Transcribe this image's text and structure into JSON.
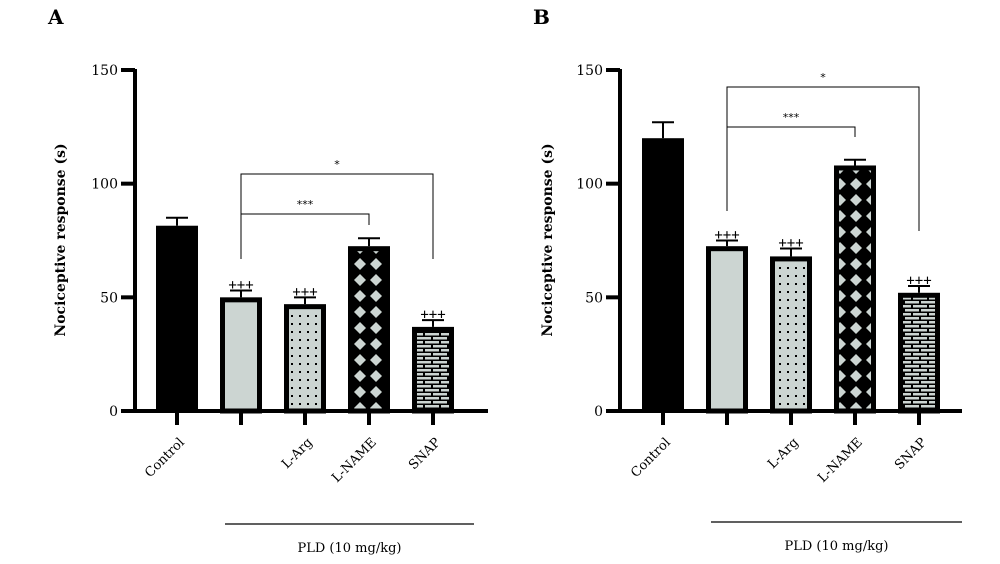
{
  "chart_data": [
    {
      "panel": "A",
      "type": "bar",
      "title": "",
      "ylabel": "Nociceptive response (s)",
      "xlabel": "",
      "ylim": [
        0,
        150
      ],
      "yticks": [
        0,
        50,
        100,
        150
      ],
      "categories": [
        "Control",
        "",
        "L-Arg",
        "L-NAME",
        "SNAP"
      ],
      "values": [
        81.5,
        50,
        47,
        72.5,
        37
      ],
      "errors": [
        3.5,
        3,
        3,
        3.5,
        3
      ],
      "patterns": [
        "solid",
        "plain",
        "dots",
        "diamond",
        "brick"
      ],
      "markers": [
        "",
        "+++",
        "+++",
        "",
        "+++"
      ],
      "group_label": "PLD (10 mg/kg)",
      "group_span": [
        1,
        4
      ],
      "brackets": [
        {
          "from": 1,
          "to": 3,
          "label": "***"
        },
        {
          "from": 1,
          "to": 4,
          "label": "*"
        }
      ]
    },
    {
      "panel": "B",
      "type": "bar",
      "title": "",
      "ylabel": "Nociceptive response (s)",
      "xlabel": "",
      "ylim": [
        0,
        150
      ],
      "yticks": [
        0,
        50,
        100,
        150
      ],
      "categories": [
        "Control",
        "",
        "L-Arg",
        "L-NAME",
        "SNAP"
      ],
      "values": [
        120,
        72.5,
        68,
        108,
        52
      ],
      "errors": [
        7,
        2.5,
        3.5,
        2.5,
        3
      ],
      "patterns": [
        "solid",
        "plain",
        "dots",
        "diamond",
        "brick"
      ],
      "markers": [
        "",
        "+++",
        "+++",
        "",
        "+++"
      ],
      "group_label": "PLD (10 mg/kg)",
      "group_span": [
        1,
        4
      ],
      "brackets": [
        {
          "from": 1,
          "to": 3,
          "label": "***"
        },
        {
          "from": 1,
          "to": 4,
          "label": "*"
        }
      ]
    }
  ],
  "colors": {
    "bar_fill_light": "#ccd5d2",
    "bar_stroke": "#000000",
    "background": "#ffffff"
  }
}
